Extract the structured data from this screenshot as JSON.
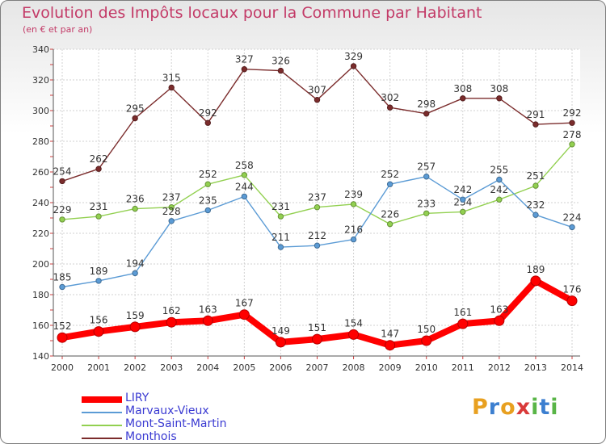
{
  "title": "Evolution des Impôts locaux pour la Commune par Habitant",
  "subtitle": "(en € et par an)",
  "logo": {
    "letters": [
      "P",
      "r",
      "o",
      "x",
      "i",
      "t",
      "i"
    ],
    "colors": [
      "#e8a020",
      "#3c7fd0",
      "#e8a020",
      "#d93a3a",
      "#59b547",
      "#3c7fd0",
      "#59b547"
    ]
  },
  "chart_data": {
    "type": "line",
    "x": [
      "2000",
      "2001",
      "2002",
      "2003",
      "2004",
      "2005",
      "2006",
      "2007",
      "2008",
      "2009",
      "2010",
      "2011",
      "2012",
      "2013",
      "2014"
    ],
    "ylim": [
      140,
      340
    ],
    "yticks": [
      140,
      160,
      180,
      200,
      220,
      240,
      260,
      280,
      300,
      320,
      340
    ],
    "grid": true,
    "legend_position": "bottom-left",
    "series": [
      {
        "name": "LIRY",
        "color": "#ff0000",
        "values": [
          152,
          156,
          159,
          162,
          163,
          167,
          149,
          151,
          154,
          147,
          150,
          161,
          163,
          189,
          176
        ]
      },
      {
        "name": "Marvaux-Vieux",
        "color": "#5b9bd5",
        "values": [
          185,
          189,
          194,
          228,
          235,
          244,
          211,
          212,
          216,
          252,
          257,
          242,
          255,
          232,
          224
        ]
      },
      {
        "name": "Mont-Saint-Martin",
        "color": "#92d050",
        "values": [
          229,
          231,
          236,
          237,
          252,
          258,
          231,
          237,
          239,
          226,
          233,
          234,
          242,
          251,
          278
        ]
      },
      {
        "name": "Monthois",
        "color": "#7b2c2c",
        "values": [
          254,
          262,
          295,
          315,
          292,
          327,
          326,
          307,
          329,
          302,
          298,
          308,
          308,
          291,
          292
        ]
      }
    ]
  }
}
